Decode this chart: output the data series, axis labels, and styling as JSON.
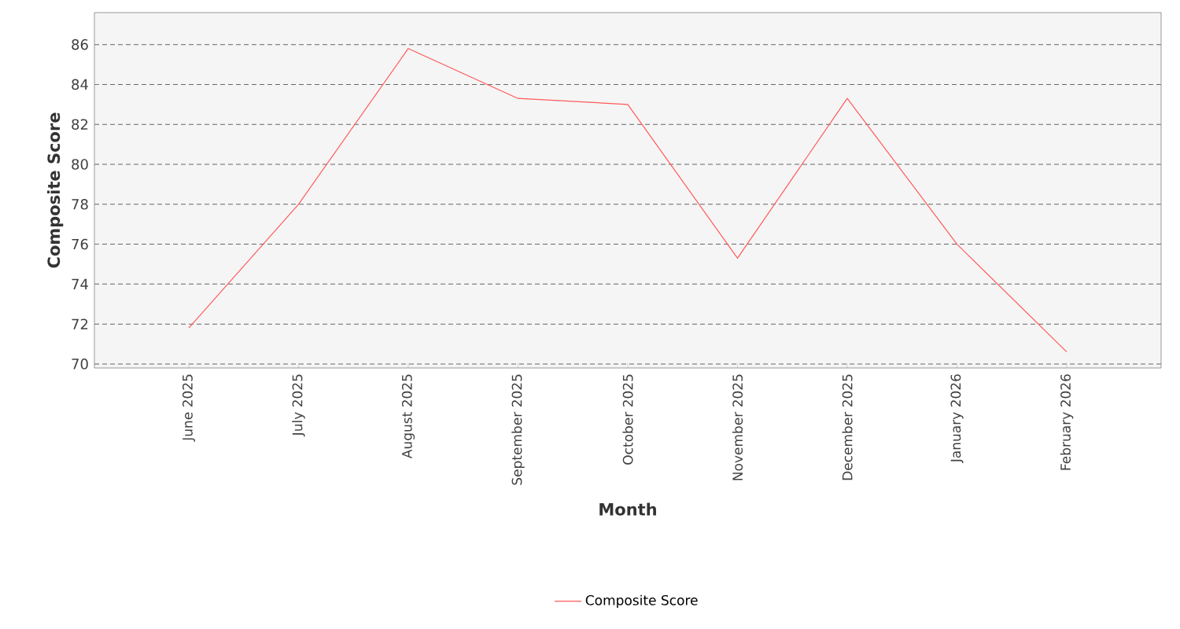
{
  "chart_data": {
    "type": "line",
    "xlabel": "Month",
    "ylabel": "Composite Score",
    "categories": [
      "June 2025",
      "July 2025",
      "August 2025",
      "September 2025",
      "October 2025",
      "November 2025",
      "December 2025",
      "January 2026",
      "February 2026"
    ],
    "series": [
      {
        "name": "Composite Score",
        "color": "#ff5a5a",
        "values": [
          71.8,
          78.0,
          85.8,
          83.3,
          83.0,
          75.3,
          83.3,
          76.0,
          70.6
        ]
      }
    ],
    "ylim": [
      69.8,
      87.6
    ],
    "yticks": [
      70,
      72,
      74,
      76,
      78,
      80,
      82,
      84,
      86
    ],
    "grid": "y",
    "legend": "bottom",
    "marker": "none",
    "line_style": "solid"
  }
}
